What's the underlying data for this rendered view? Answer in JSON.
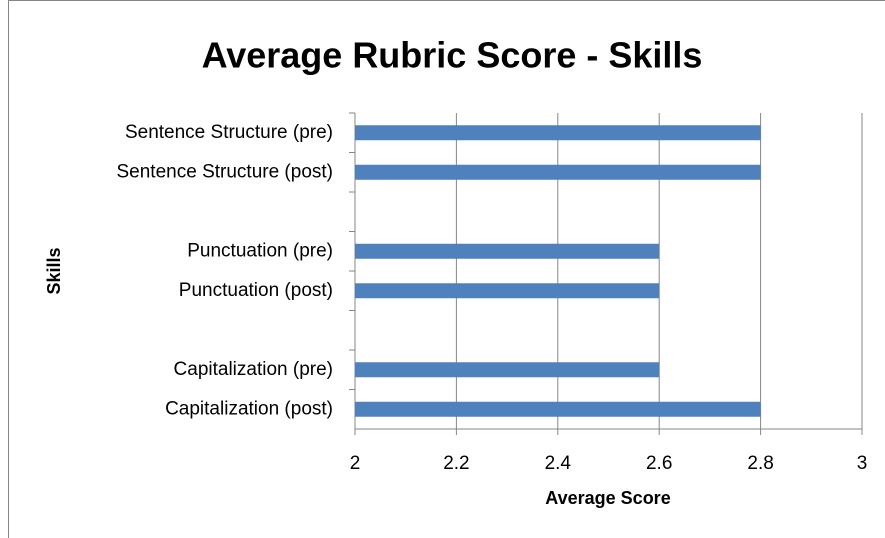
{
  "chart_data": {
    "type": "barh",
    "title": "Average Rubric Score - Skills",
    "x_label": "Average Score",
    "y_label": "Skills",
    "categories": [
      "Sentence Structure (pre)",
      "Sentence Structure (post)",
      null,
      "Punctuation (pre)",
      "Punctuation (post)",
      null,
      "Capitalization (pre)",
      "Capitalization (post)"
    ],
    "values": [
      2.8,
      2.8,
      null,
      2.6,
      2.6,
      null,
      2.6,
      2.8
    ],
    "color": "#4f81bd",
    "xlim": [
      2,
      3
    ],
    "xticks": [
      2,
      2.2,
      2.4,
      2.6,
      2.8,
      3
    ],
    "grid": true
  }
}
